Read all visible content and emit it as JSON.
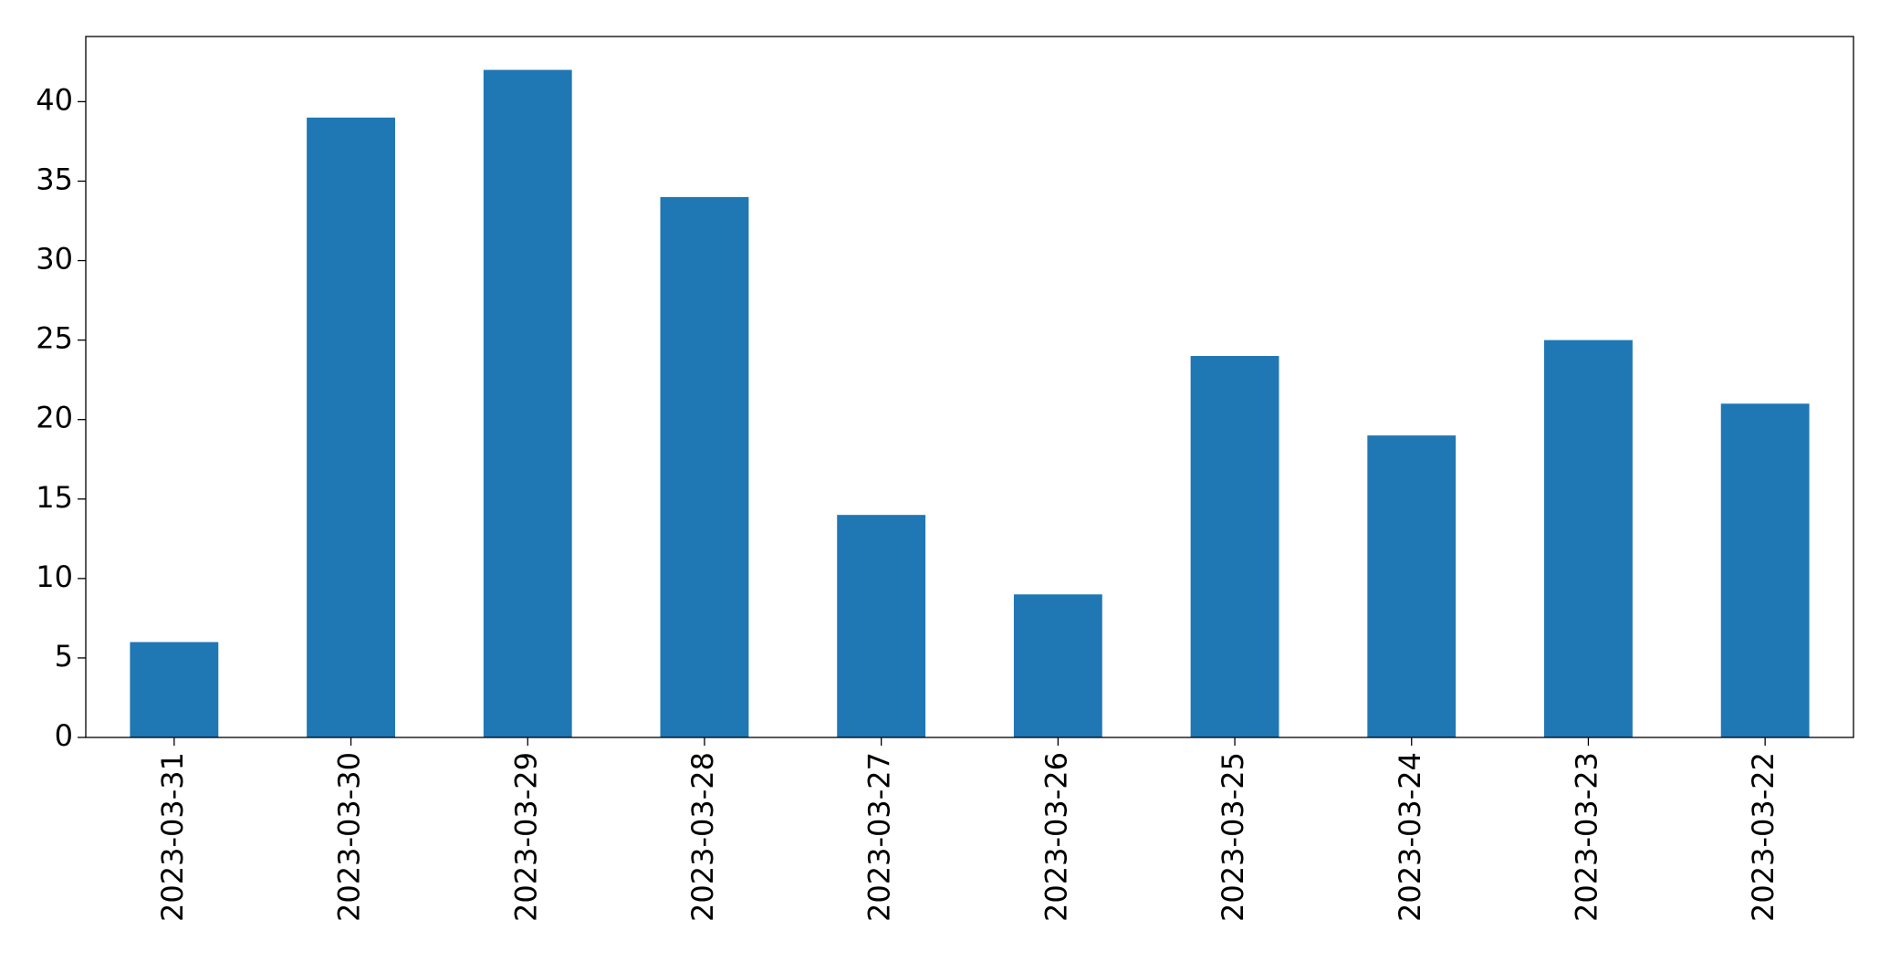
{
  "chart_data": {
    "type": "bar",
    "categories": [
      "2023-03-31",
      "2023-03-30",
      "2023-03-29",
      "2023-03-28",
      "2023-03-27",
      "2023-03-26",
      "2023-03-25",
      "2023-03-24",
      "2023-03-23",
      "2023-03-22"
    ],
    "values": [
      6,
      39,
      42,
      34,
      14,
      9,
      24,
      19,
      25,
      21
    ],
    "color": "#1f77b4",
    "ylim": [
      0,
      44.1
    ],
    "yticks": [
      0,
      5,
      10,
      15,
      20,
      25,
      30,
      35,
      40
    ],
    "grid": false
  }
}
